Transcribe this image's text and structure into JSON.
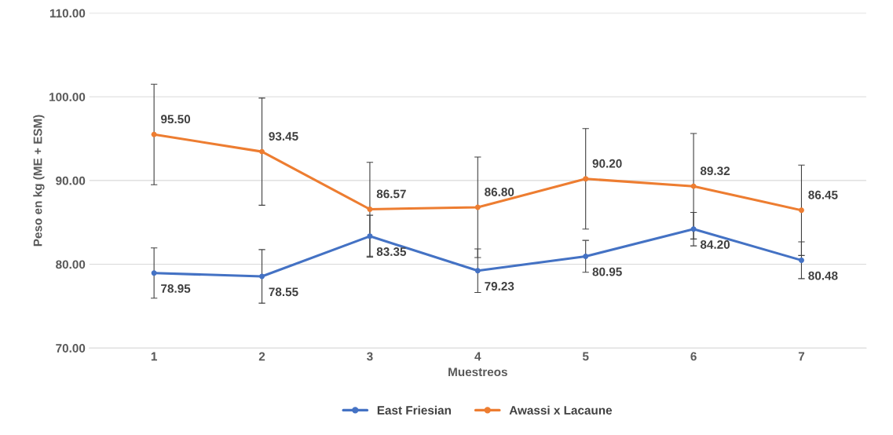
{
  "chart_data": {
    "type": "line",
    "xlabel": "Muestreos",
    "ylabel": "Peso en kg (ME + ESM)",
    "categories": [
      "1",
      "2",
      "3",
      "4",
      "5",
      "6",
      "7"
    ],
    "series": [
      {
        "name": "East Friesian",
        "color": "#4472c4",
        "values": [
          78.95,
          78.55,
          83.35,
          79.23,
          80.95,
          84.2,
          80.48
        ],
        "errors": [
          3.0,
          3.2,
          2.5,
          2.6,
          1.9,
          2.0,
          2.2
        ],
        "value_labels": [
          "78.95",
          "78.55",
          "83.35",
          "79.23",
          "80.95",
          "84.20",
          "80.48"
        ]
      },
      {
        "name": "Awassi x Lacaune",
        "color": "#ed7d31",
        "values": [
          95.5,
          93.45,
          86.57,
          86.8,
          90.2,
          89.32,
          86.45
        ],
        "errors": [
          6.0,
          6.4,
          5.6,
          6.0,
          6.0,
          6.3,
          5.4
        ],
        "value_labels": [
          "95.50",
          "93.45",
          "86.57",
          "86.80",
          "90.20",
          "89.32",
          "86.45"
        ]
      }
    ],
    "ylim": [
      70,
      110
    ],
    "yticks": [
      {
        "value": 70,
        "label": "70.00"
      },
      {
        "value": 80,
        "label": "80.00"
      },
      {
        "value": 90,
        "label": "90.00"
      },
      {
        "value": 100,
        "label": "100.00"
      },
      {
        "value": 110,
        "label": "110.00"
      }
    ],
    "grid": "y",
    "legend": "bottom",
    "marker": "circle",
    "line_style": "solid"
  }
}
